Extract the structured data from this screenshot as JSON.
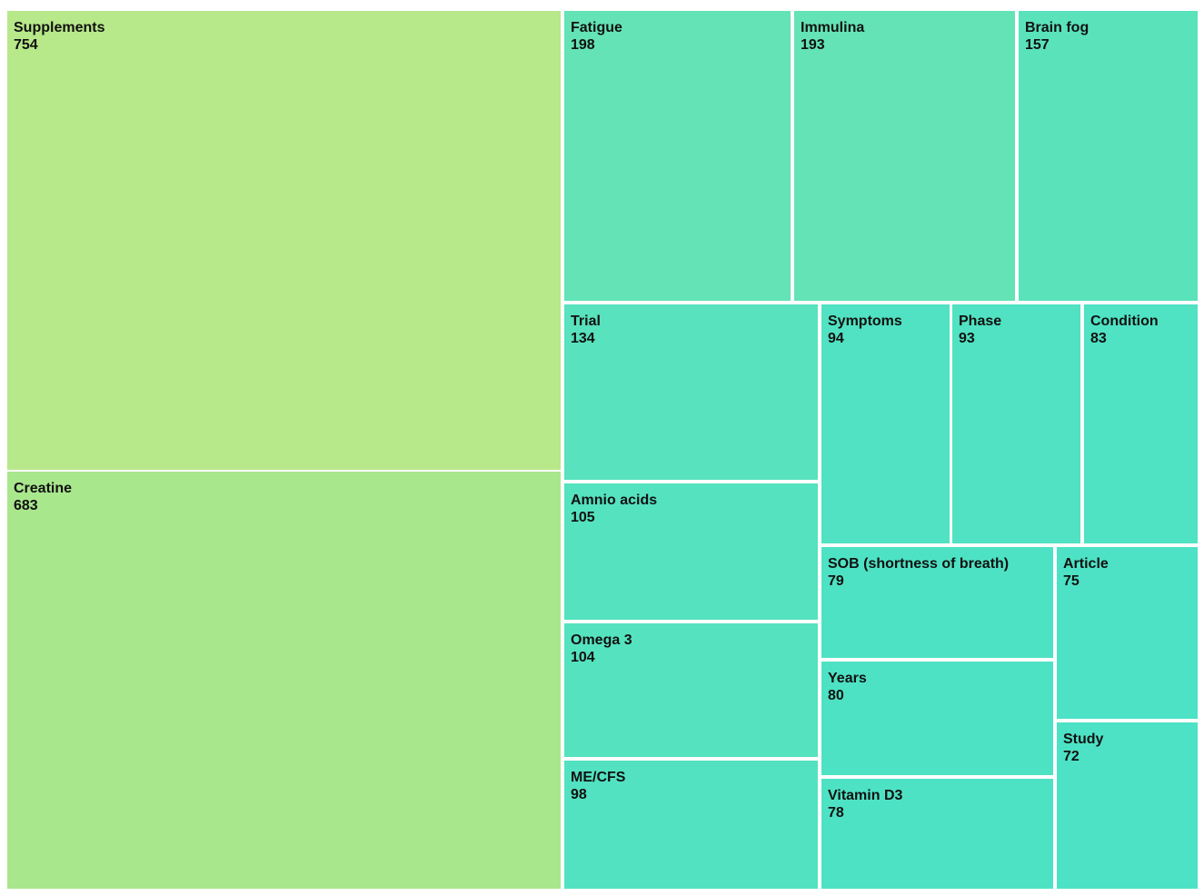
{
  "chart_data": {
    "type": "treemap",
    "items": [
      {
        "name": "Supplements",
        "value": 754,
        "color": "#b7e889"
      },
      {
        "name": "Creatine",
        "value": 683,
        "color": "#a9e78d"
      },
      {
        "name": "Fatigue",
        "value": 198,
        "color": "#63e3b6"
      },
      {
        "name": "Immulina",
        "value": 193,
        "color": "#64e3b6"
      },
      {
        "name": "Brain fog",
        "value": 157,
        "color": "#5ae2bb"
      },
      {
        "name": "Trial",
        "value": 134,
        "color": "#58e2bd"
      },
      {
        "name": "Amnio acids",
        "value": 105,
        "color": "#55e2bf"
      },
      {
        "name": "Omega 3",
        "value": 104,
        "color": "#55e2bf"
      },
      {
        "name": "ME/CFS",
        "value": 98,
        "color": "#52e2c1"
      },
      {
        "name": "Symptoms",
        "value": 94,
        "color": "#50e2c2"
      },
      {
        "name": "Phase",
        "value": 93,
        "color": "#50e2c2"
      },
      {
        "name": "Condition",
        "value": 83,
        "color": "#4fe2c3"
      },
      {
        "name": "SOB (shortness of breath)",
        "value": 79,
        "color": "#4ee2c4"
      },
      {
        "name": "Years",
        "value": 80,
        "color": "#4ee2c4"
      },
      {
        "name": "Vitamin D3",
        "value": 78,
        "color": "#4ee2c4"
      },
      {
        "name": "Article",
        "value": 75,
        "color": "#4de2c5"
      },
      {
        "name": "Study",
        "value": 72,
        "color": "#4de2c5"
      }
    ]
  }
}
